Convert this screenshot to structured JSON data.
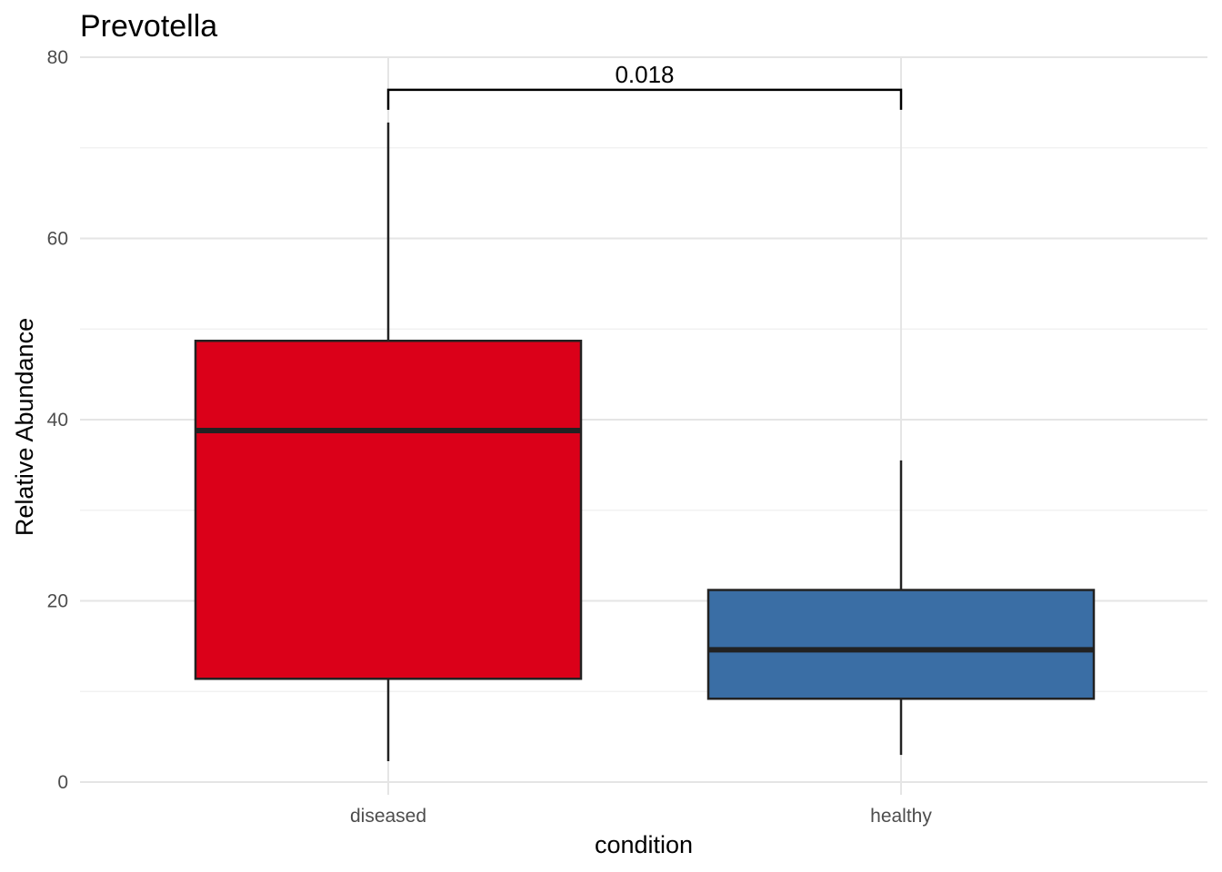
{
  "chart_data": {
    "type": "box",
    "title": "Prevotella",
    "xlabel": "condition",
    "ylabel": "Relative Abundance",
    "ylim": [
      0,
      80
    ],
    "y_ticks": [
      0,
      20,
      40,
      60,
      80
    ],
    "y_tick_labels": [
      "0",
      "20",
      "40",
      "60",
      "80"
    ],
    "grid": true,
    "categories": [
      "diseased",
      "healthy"
    ],
    "boxes": [
      {
        "category": "diseased",
        "whisker_low": 2.3,
        "q1": 11.4,
        "median": 38.8,
        "q3": 48.7,
        "whisker_high": 72.8,
        "color": "#db0019"
      },
      {
        "category": "healthy",
        "whisker_low": 3.0,
        "q1": 9.2,
        "median": 14.6,
        "q3": 21.2,
        "whisker_high": 35.5,
        "color": "#3a6ea5"
      }
    ],
    "annotations": [
      {
        "type": "significance-bracket",
        "from": "diseased",
        "to": "healthy",
        "label": "0.018",
        "y": 76.4
      }
    ]
  }
}
